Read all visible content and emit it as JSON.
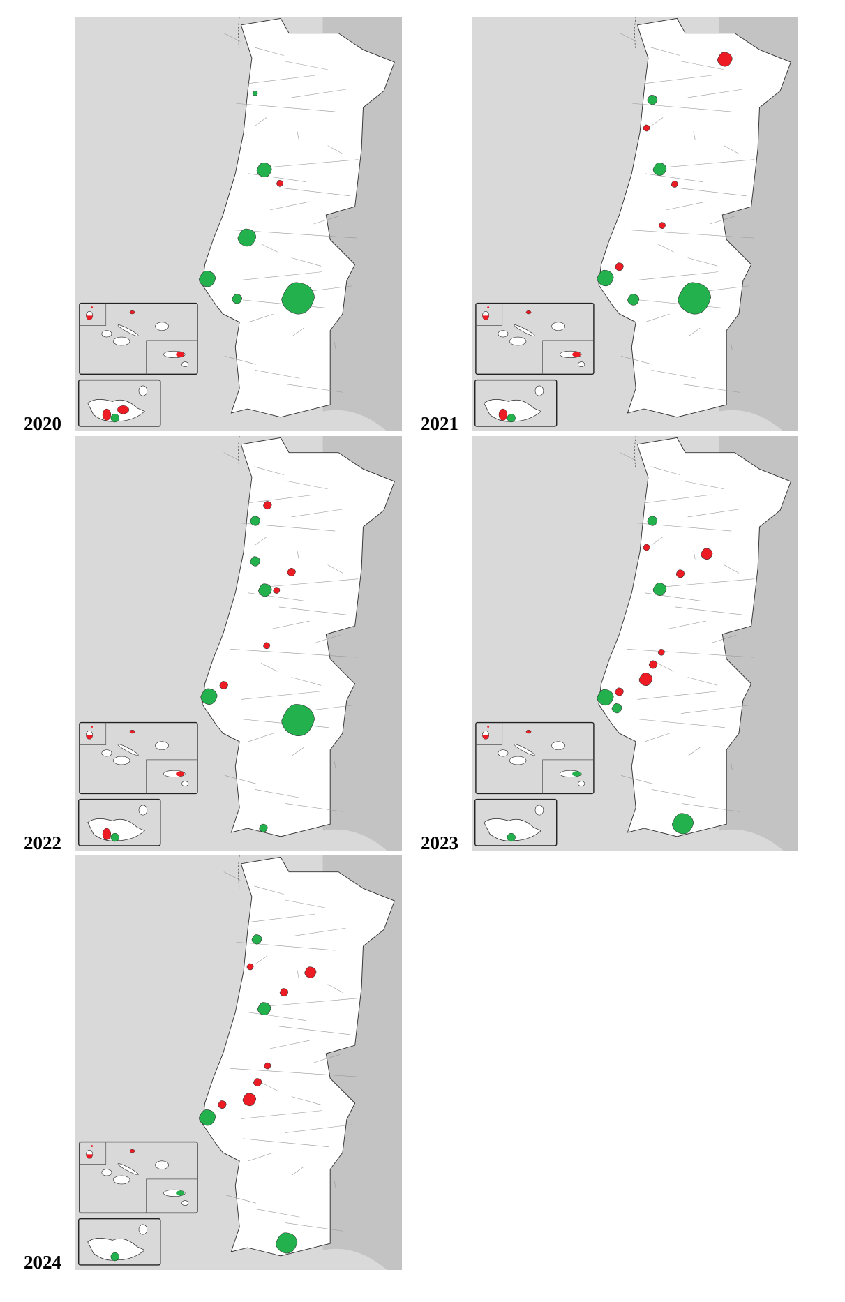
{
  "colors": {
    "sea": "#d9d9d9",
    "spain": "#c3c3c3",
    "land": "#ffffff",
    "red": "#ed1c24",
    "green": "#22b14c",
    "border": "#555555"
  },
  "panels": [
    {
      "year": "2020"
    },
    {
      "year": "2021"
    },
    {
      "year": "2022"
    },
    {
      "year": "2023"
    },
    {
      "year": "2024"
    }
  ]
}
